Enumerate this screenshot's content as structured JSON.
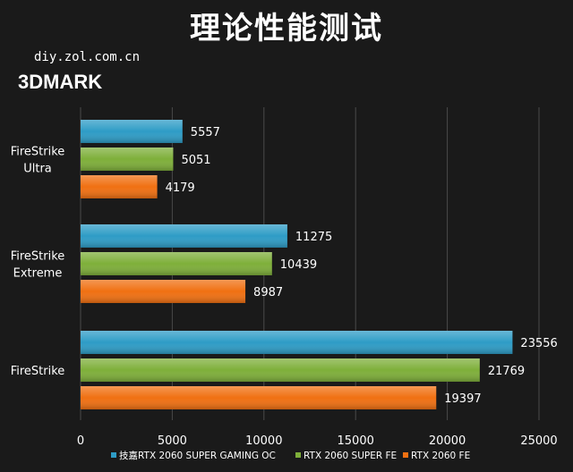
{
  "header": {
    "title": "理论性能测试",
    "site": "diy.zol.com.cn",
    "brand": "3DMARK"
  },
  "colors": {
    "background": "#1a1a1a",
    "grid": "#4a4a4a",
    "text": "#ffffff"
  },
  "chart_data": {
    "type": "bar",
    "orientation": "horizontal",
    "categories": [
      "FireStrike Ultra",
      "FireStrike Extreme",
      "FireStrike"
    ],
    "category_label_lines": [
      [
        "FireStrike",
        "Ultra"
      ],
      [
        "FireStrike",
        "Extreme"
      ],
      [
        "FireStrike"
      ]
    ],
    "series": [
      {
        "name": "技嘉RTX 2060 SUPER GAMING OC",
        "color": "#2e9cc6",
        "values": [
          5557,
          11275,
          23556
        ]
      },
      {
        "name": "RTX 2060 SUPER FE",
        "color": "#7eaf3a",
        "values": [
          5051,
          10439,
          21769
        ]
      },
      {
        "name": "RTX 2060 FE",
        "color": "#f07012",
        "values": [
          4179,
          8987,
          19397
        ]
      }
    ],
    "xlim": [
      0,
      25000
    ],
    "xticks": [
      0,
      5000,
      10000,
      15000,
      20000,
      25000
    ],
    "grid": true,
    "legend": "bottom"
  }
}
